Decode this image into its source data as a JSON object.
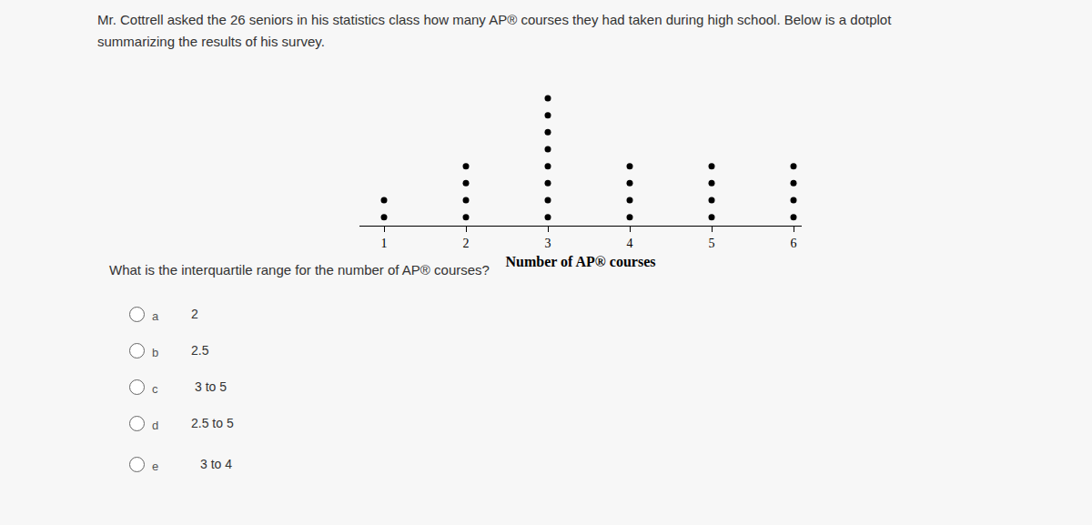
{
  "header": {
    "lines": [
      "Mr. Cottrell asked the 26 seniors in his statistics class how many AP® courses they had taken during high school. Below is a dotplot",
      "summarizing the results of his survey."
    ]
  },
  "chart_data": {
    "type": "dotplot",
    "x_label": "Number of AP® courses",
    "x": [
      1,
      2,
      3,
      4,
      5,
      6
    ],
    "values": [
      2,
      4,
      8,
      4,
      4,
      4
    ],
    "color": "#000000",
    "xlim": [
      0.7,
      6.1
    ],
    "xticks": [
      1,
      2,
      3,
      4,
      5,
      6
    ],
    "grid": false,
    "tick_labels": "x",
    "marker": "circle"
  },
  "question": "What is the interquartile range for the number of AP® courses?",
  "options": [
    {
      "letter": "a",
      "text": "2"
    },
    {
      "letter": "b",
      "text": "2.5"
    },
    {
      "letter": "c",
      "text": "3 to 5"
    },
    {
      "letter": "d",
      "text": "2.5 to 5"
    },
    {
      "letter": "e",
      "text": "3 to 4"
    }
  ]
}
